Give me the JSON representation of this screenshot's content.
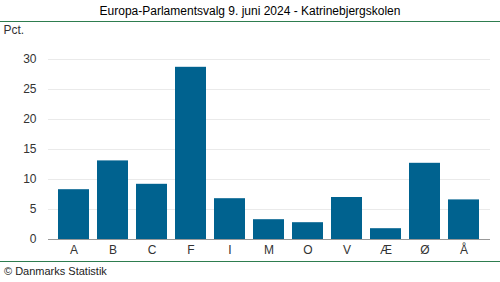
{
  "chart_data": {
    "type": "bar",
    "title": "Europa-Parlamentsvalg 9. juni 2024 - Katrinebjergskolen",
    "ylabel": "Pct.",
    "caption": "© Danmarks Statistik",
    "categories": [
      "A",
      "B",
      "C",
      "F",
      "I",
      "M",
      "O",
      "V",
      "Æ",
      "Ø",
      "Å"
    ],
    "values": [
      8.3,
      13.1,
      9.2,
      28.7,
      6.8,
      3.3,
      2.8,
      7.0,
      1.8,
      12.7,
      6.6
    ],
    "color": "#00628f",
    "ylim": [
      0,
      30
    ],
    "yticks": [
      0,
      5,
      10,
      15,
      20,
      25,
      30
    ],
    "grid": true
  }
}
